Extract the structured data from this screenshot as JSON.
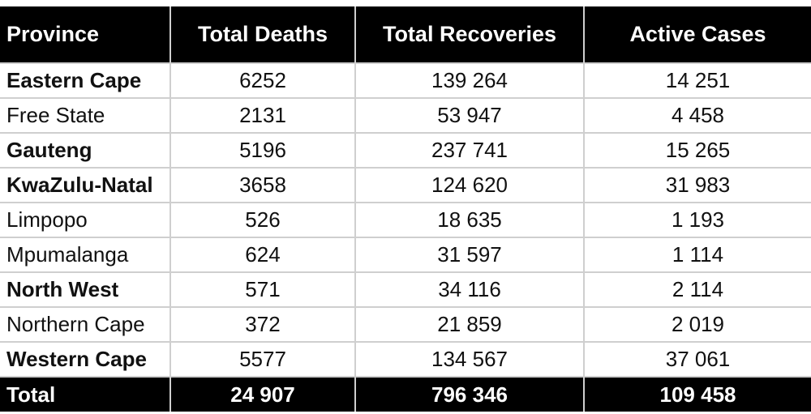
{
  "table": {
    "headers": [
      "Province",
      "Total Deaths",
      "Total Recoveries",
      "Active Cases"
    ],
    "rows": [
      {
        "province": "Eastern Cape",
        "bold": true,
        "deaths": "6252",
        "recoveries": "139 264",
        "active": "14 251"
      },
      {
        "province": "Free State",
        "bold": false,
        "deaths": "2131",
        "recoveries": "53 947",
        "active": "4 458"
      },
      {
        "province": "Gauteng",
        "bold": true,
        "deaths": "5196",
        "recoveries": "237 741",
        "active": "15 265"
      },
      {
        "province": "KwaZulu-Natal",
        "bold": true,
        "deaths": "3658",
        "recoveries": "124 620",
        "active": "31 983"
      },
      {
        "province": "Limpopo",
        "bold": false,
        "deaths": "526",
        "recoveries": "18 635",
        "active": "1 193"
      },
      {
        "province": "Mpumalanga",
        "bold": false,
        "deaths": "624",
        "recoveries": "31 597",
        "active": "1 114"
      },
      {
        "province": "North West",
        "bold": true,
        "deaths": "571",
        "recoveries": "34 116",
        "active": "2 114"
      },
      {
        "province": "Northern Cape",
        "bold": false,
        "deaths": "372",
        "recoveries": "21 859",
        "active": "2 019"
      },
      {
        "province": "Western Cape",
        "bold": true,
        "deaths": "5577",
        "recoveries": "134 567",
        "active": "37 061"
      }
    ],
    "total": {
      "label": "Total",
      "deaths": "24 907",
      "recoveries": "796 346",
      "active": "109 458"
    }
  }
}
